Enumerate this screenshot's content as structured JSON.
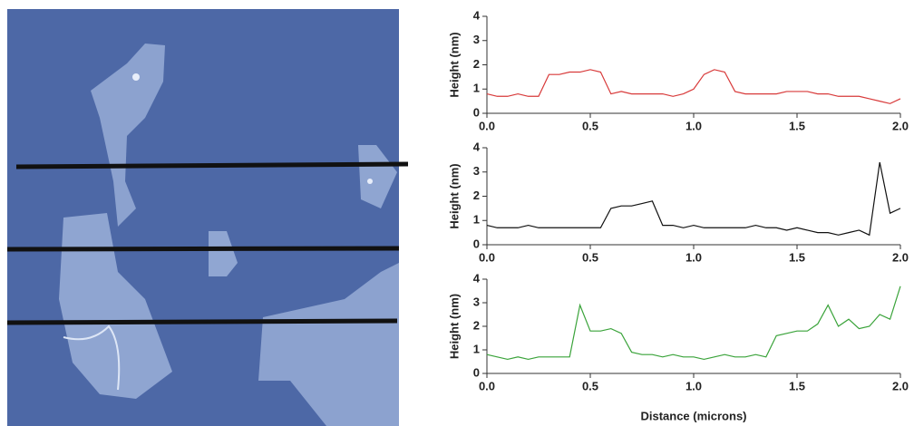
{
  "chart_data": [
    {
      "type": "line",
      "ylabel": "Height (nm)",
      "color": "#d83a3a",
      "x": [
        0,
        0.05,
        0.1,
        0.15,
        0.2,
        0.25,
        0.3,
        0.35,
        0.4,
        0.45,
        0.5,
        0.55,
        0.6,
        0.65,
        0.7,
        0.75,
        0.8,
        0.85,
        0.9,
        0.95,
        1.0,
        1.05,
        1.1,
        1.15,
        1.2,
        1.25,
        1.3,
        1.35,
        1.4,
        1.45,
        1.5,
        1.55,
        1.6,
        1.65,
        1.7,
        1.75,
        1.8,
        1.85,
        1.9,
        1.95,
        2.0
      ],
      "values": [
        0.8,
        0.7,
        0.7,
        0.8,
        0.7,
        0.7,
        1.6,
        1.6,
        1.7,
        1.7,
        1.8,
        1.7,
        0.8,
        0.9,
        0.8,
        0.8,
        0.8,
        0.8,
        0.7,
        0.8,
        1.0,
        1.6,
        1.8,
        1.7,
        0.9,
        0.8,
        0.8,
        0.8,
        0.8,
        0.9,
        0.9,
        0.9,
        0.8,
        0.8,
        0.7,
        0.7,
        0.7,
        0.6,
        0.5,
        0.4,
        0.6
      ],
      "xlim": [
        0,
        2
      ],
      "ylim": [
        0,
        4
      ],
      "xticks": [
        {
          "value": 0,
          "label": "0.0"
        },
        {
          "value": 0.5,
          "label": "0.5"
        },
        {
          "value": 1,
          "label": "1.0"
        },
        {
          "value": 1.5,
          "label": "1.5"
        },
        {
          "value": 2,
          "label": "2.0"
        }
      ],
      "yticks": [
        0,
        1,
        2,
        3,
        4
      ]
    },
    {
      "type": "line",
      "ylabel": "Height (nm)",
      "color": "#111111",
      "x": [
        0,
        0.05,
        0.1,
        0.15,
        0.2,
        0.25,
        0.3,
        0.35,
        0.4,
        0.45,
        0.5,
        0.55,
        0.6,
        0.65,
        0.7,
        0.75,
        0.8,
        0.85,
        0.9,
        0.95,
        1.0,
        1.05,
        1.1,
        1.15,
        1.2,
        1.25,
        1.3,
        1.35,
        1.4,
        1.45,
        1.5,
        1.55,
        1.6,
        1.65,
        1.7,
        1.75,
        1.8,
        1.85,
        1.9,
        1.95,
        2.0
      ],
      "values": [
        0.8,
        0.7,
        0.7,
        0.7,
        0.8,
        0.7,
        0.7,
        0.7,
        0.7,
        0.7,
        0.7,
        0.7,
        1.5,
        1.6,
        1.6,
        1.7,
        1.8,
        0.8,
        0.8,
        0.7,
        0.8,
        0.7,
        0.7,
        0.7,
        0.7,
        0.7,
        0.8,
        0.7,
        0.7,
        0.6,
        0.7,
        0.6,
        0.5,
        0.5,
        0.4,
        0.5,
        0.6,
        0.4,
        3.4,
        1.3,
        1.5
      ],
      "xlim": [
        0,
        2
      ],
      "ylim": [
        0,
        4
      ],
      "xticks": [
        {
          "value": 0,
          "label": "0.0"
        },
        {
          "value": 0.5,
          "label": "0.5"
        },
        {
          "value": 1,
          "label": "1.0"
        },
        {
          "value": 1.5,
          "label": "1.5"
        },
        {
          "value": 2,
          "label": "2.0"
        }
      ],
      "yticks": [
        0,
        1,
        2,
        3,
        4
      ]
    },
    {
      "type": "line",
      "ylabel": "Height (nm)",
      "xlabel": "Distance (microns)",
      "color": "#3aa33a",
      "x": [
        0,
        0.05,
        0.1,
        0.15,
        0.2,
        0.25,
        0.3,
        0.35,
        0.4,
        0.45,
        0.5,
        0.55,
        0.6,
        0.65,
        0.7,
        0.75,
        0.8,
        0.85,
        0.9,
        0.95,
        1.0,
        1.05,
        1.1,
        1.15,
        1.2,
        1.25,
        1.3,
        1.35,
        1.4,
        1.45,
        1.5,
        1.55,
        1.6,
        1.65,
        1.7,
        1.75,
        1.8,
        1.85,
        1.9,
        1.95,
        2.0
      ],
      "values": [
        0.8,
        0.7,
        0.6,
        0.7,
        0.6,
        0.7,
        0.7,
        0.7,
        0.7,
        2.9,
        1.8,
        1.8,
        1.9,
        1.7,
        0.9,
        0.8,
        0.8,
        0.7,
        0.8,
        0.7,
        0.7,
        0.6,
        0.7,
        0.8,
        0.7,
        0.7,
        0.8,
        0.7,
        1.6,
        1.7,
        1.8,
        1.8,
        2.1,
        2.9,
        2.0,
        2.3,
        1.9,
        2.0,
        2.5,
        2.3,
        3.7
      ],
      "xlim": [
        0,
        2
      ],
      "ylim": [
        0,
        4
      ],
      "xticks": [
        {
          "value": 0,
          "label": "0.0"
        },
        {
          "value": 0.5,
          "label": "0.5"
        },
        {
          "value": 1,
          "label": "1.0"
        },
        {
          "value": 1.5,
          "label": "1.5"
        },
        {
          "value": 2,
          "label": "2.0"
        }
      ],
      "yticks": [
        0,
        1,
        2,
        3,
        4
      ]
    }
  ]
}
